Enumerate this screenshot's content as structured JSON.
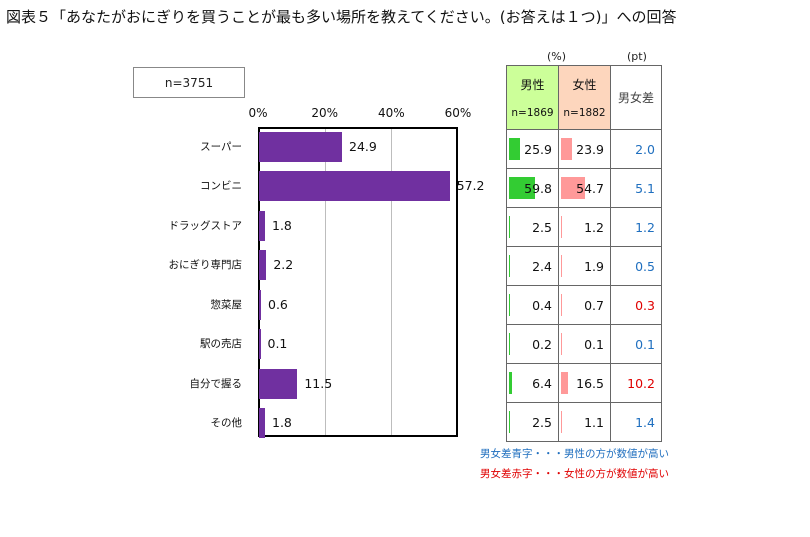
{
  "title": "図表５「あなたがおにぎりを買うことが最も多い場所を教えてください。(お答えは１つ)」への回答",
  "sample_label": "n=3751",
  "units": {
    "pct": "(%)",
    "pt": "(pt)"
  },
  "table_header": {
    "male": "男性",
    "male_n": "n=1869",
    "female": "女性",
    "female_n": "n=1882",
    "diff": "男女差"
  },
  "colors": {
    "bar": "#7030a0",
    "male": "#33cc33",
    "female": "#ff9999",
    "blue": "#1f6fbf",
    "red": "#e00000"
  },
  "chart_data": {
    "type": "bar",
    "orientation": "horizontal",
    "categories": [
      "スーパー",
      "コンビニ",
      "ドラッグストア",
      "おにぎり専門店",
      "惣菜屋",
      "駅の売店",
      "自分で握る",
      "その他"
    ],
    "values": [
      24.9,
      57.2,
      1.8,
      2.2,
      0.6,
      0.1,
      11.5,
      1.8
    ],
    "value_labels": [
      "24.9",
      "57.2",
      "1.8",
      "2.2",
      "0.6",
      "0.1",
      "11.5",
      "1.8"
    ],
    "xlim": [
      0,
      60
    ],
    "xticks": [
      "0%",
      "20%",
      "40%",
      "60%"
    ],
    "tick_values": [
      0,
      20,
      40,
      60
    ],
    "grid": true
  },
  "table_rows": [
    {
      "male": "25.9",
      "female": "23.9",
      "diff": "2.0",
      "diff_color": "blue"
    },
    {
      "male": "59.8",
      "female": "54.7",
      "diff": "5.1",
      "diff_color": "blue"
    },
    {
      "male": "2.5",
      "female": "1.2",
      "diff": "1.2",
      "diff_color": "blue"
    },
    {
      "male": "2.4",
      "female": "1.9",
      "diff": "0.5",
      "diff_color": "blue"
    },
    {
      "male": "0.4",
      "female": "0.7",
      "diff": "0.3",
      "diff_color": "red"
    },
    {
      "male": "0.2",
      "female": "0.1",
      "diff": "0.1",
      "diff_color": "blue"
    },
    {
      "male": "6.4",
      "female": "16.5",
      "diff": "10.2",
      "diff_color": "red"
    },
    {
      "male": "2.5",
      "female": "1.1",
      "diff": "1.4",
      "diff_color": "blue"
    }
  ],
  "notes": {
    "blue": "男女差青字・・・男性の方が数値が高い",
    "red": "男女差赤字・・・女性の方が数値が高い"
  }
}
